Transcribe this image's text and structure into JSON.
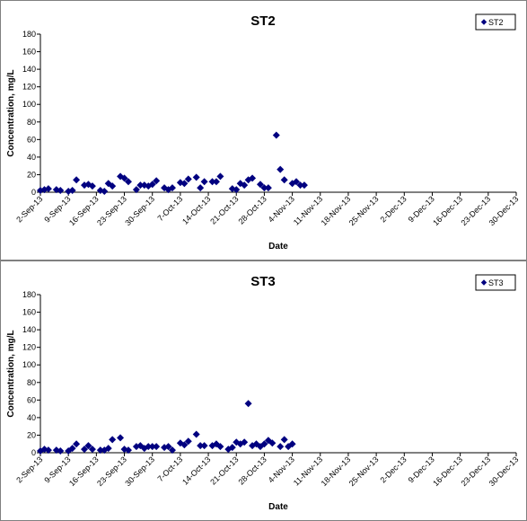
{
  "chart_data": [
    {
      "type": "scatter",
      "title": "ST2",
      "xlabel": "Date",
      "ylabel": "Concentration, mg/L",
      "ylim": [
        0,
        180
      ],
      "yticks": [
        "0",
        "20",
        "40",
        "60",
        "80",
        "100",
        "120",
        "140",
        "160",
        "180"
      ],
      "xlim": [
        "2013-09-02",
        "2013-12-30"
      ],
      "xticks": [
        "2-Sep-13",
        "9-Sep-13",
        "16-Sep-13",
        "23-Sep-13",
        "30-Sep-13",
        "7-Oct-13",
        "14-Oct-13",
        "21-Oct-13",
        "28-Oct-13",
        "4-Nov-13",
        "11-Nov-13",
        "18-Nov-13",
        "25-Nov-13",
        "2-Dec-13",
        "9-Dec-13",
        "16-Dec-13",
        "23-Dec-13",
        "30-Dec-13"
      ],
      "legend_position": "top-right",
      "grid": false,
      "color": "#000080",
      "series": [
        {
          "name": "ST2",
          "points": [
            [
              "2013-09-02",
              2
            ],
            [
              "2013-09-03",
              3
            ],
            [
              "2013-09-04",
              4
            ],
            [
              "2013-09-06",
              3
            ],
            [
              "2013-09-07",
              2
            ],
            [
              "2013-09-09",
              1
            ],
            [
              "2013-09-10",
              2
            ],
            [
              "2013-09-11",
              14
            ],
            [
              "2013-09-13",
              8
            ],
            [
              "2013-09-14",
              9
            ],
            [
              "2013-09-15",
              7
            ],
            [
              "2013-09-17",
              2
            ],
            [
              "2013-09-18",
              1
            ],
            [
              "2013-09-19",
              10
            ],
            [
              "2013-09-20",
              7
            ],
            [
              "2013-09-22",
              18
            ],
            [
              "2013-09-23",
              16
            ],
            [
              "2013-09-24",
              12
            ],
            [
              "2013-09-26",
              3
            ],
            [
              "2013-09-27",
              8
            ],
            [
              "2013-09-28",
              8
            ],
            [
              "2013-09-29",
              7
            ],
            [
              "2013-09-30",
              9
            ],
            [
              "2013-10-01",
              13
            ],
            [
              "2013-10-03",
              5
            ],
            [
              "2013-10-04",
              3
            ],
            [
              "2013-10-05",
              5
            ],
            [
              "2013-10-07",
              11
            ],
            [
              "2013-10-08",
              10
            ],
            [
              "2013-10-09",
              15
            ],
            [
              "2013-10-11",
              17
            ],
            [
              "2013-10-12",
              5
            ],
            [
              "2013-10-13",
              12
            ],
            [
              "2013-10-15",
              12
            ],
            [
              "2013-10-16",
              12
            ],
            [
              "2013-10-17",
              18
            ],
            [
              "2013-10-20",
              4
            ],
            [
              "2013-10-21",
              3
            ],
            [
              "2013-10-22",
              10
            ],
            [
              "2013-10-23",
              8
            ],
            [
              "2013-10-24",
              14
            ],
            [
              "2013-10-25",
              16
            ],
            [
              "2013-10-27",
              9
            ],
            [
              "2013-10-28",
              5
            ],
            [
              "2013-10-29",
              5
            ],
            [
              "2013-10-31",
              65
            ],
            [
              "2013-11-01",
              26
            ],
            [
              "2013-11-02",
              14
            ],
            [
              "2013-11-04",
              10
            ],
            [
              "2013-11-05",
              12
            ],
            [
              "2013-11-06",
              8
            ],
            [
              "2013-11-07",
              8
            ]
          ]
        }
      ]
    },
    {
      "type": "scatter",
      "title": "ST3",
      "xlabel": "Date",
      "ylabel": "Concentration, mg/L",
      "ylim": [
        0,
        180
      ],
      "yticks": [
        "0",
        "20",
        "40",
        "60",
        "80",
        "100",
        "120",
        "140",
        "160",
        "180"
      ],
      "xlim": [
        "2013-09-02",
        "2013-12-30"
      ],
      "xticks": [
        "2-Sep-13",
        "9-Sep-13",
        "16-Sep-13",
        "23-Sep-13",
        "30-Sep-13",
        "7-Oct-13",
        "14-Oct-13",
        "21-Oct-13",
        "28-Oct-13",
        "4-Nov-13",
        "11-Nov-13",
        "18-Nov-13",
        "25-Nov-13",
        "2-Dec-13",
        "9-Dec-13",
        "16-Dec-13",
        "23-Dec-13",
        "30-Dec-13"
      ],
      "legend_position": "top-right",
      "grid": false,
      "color": "#000080",
      "series": [
        {
          "name": "ST3",
          "points": [
            [
              "2013-09-02",
              2
            ],
            [
              "2013-09-03",
              4
            ],
            [
              "2013-09-04",
              3
            ],
            [
              "2013-09-06",
              3
            ],
            [
              "2013-09-07",
              2
            ],
            [
              "2013-09-09",
              2
            ],
            [
              "2013-09-10",
              5
            ],
            [
              "2013-09-11",
              10
            ],
            [
              "2013-09-13",
              4
            ],
            [
              "2013-09-14",
              8
            ],
            [
              "2013-09-15",
              4
            ],
            [
              "2013-09-17",
              3
            ],
            [
              "2013-09-18",
              3
            ],
            [
              "2013-09-19",
              5
            ],
            [
              "2013-09-20",
              15
            ],
            [
              "2013-09-22",
              17
            ],
            [
              "2013-09-23",
              4
            ],
            [
              "2013-09-24",
              3
            ],
            [
              "2013-09-26",
              7
            ],
            [
              "2013-09-27",
              8
            ],
            [
              "2013-09-28",
              5
            ],
            [
              "2013-09-29",
              7
            ],
            [
              "2013-09-30",
              7
            ],
            [
              "2013-10-01",
              7
            ],
            [
              "2013-10-03",
              6
            ],
            [
              "2013-10-04",
              7
            ],
            [
              "2013-10-05",
              3
            ],
            [
              "2013-10-07",
              11
            ],
            [
              "2013-10-08",
              9
            ],
            [
              "2013-10-09",
              13
            ],
            [
              "2013-10-11",
              21
            ],
            [
              "2013-10-12",
              8
            ],
            [
              "2013-10-13",
              8
            ],
            [
              "2013-10-15",
              8
            ],
            [
              "2013-10-16",
              10
            ],
            [
              "2013-10-17",
              7
            ],
            [
              "2013-10-19",
              4
            ],
            [
              "2013-10-20",
              6
            ],
            [
              "2013-10-21",
              12
            ],
            [
              "2013-10-22",
              10
            ],
            [
              "2013-10-23",
              12
            ],
            [
              "2013-10-24",
              56
            ],
            [
              "2013-10-25",
              8
            ],
            [
              "2013-10-26",
              10
            ],
            [
              "2013-10-27",
              7
            ],
            [
              "2013-10-28",
              10
            ],
            [
              "2013-10-29",
              14
            ],
            [
              "2013-10-30",
              11
            ],
            [
              "2013-11-01",
              7
            ],
            [
              "2013-11-02",
              15
            ],
            [
              "2013-11-03",
              7
            ],
            [
              "2013-11-04",
              10
            ]
          ]
        }
      ]
    }
  ]
}
